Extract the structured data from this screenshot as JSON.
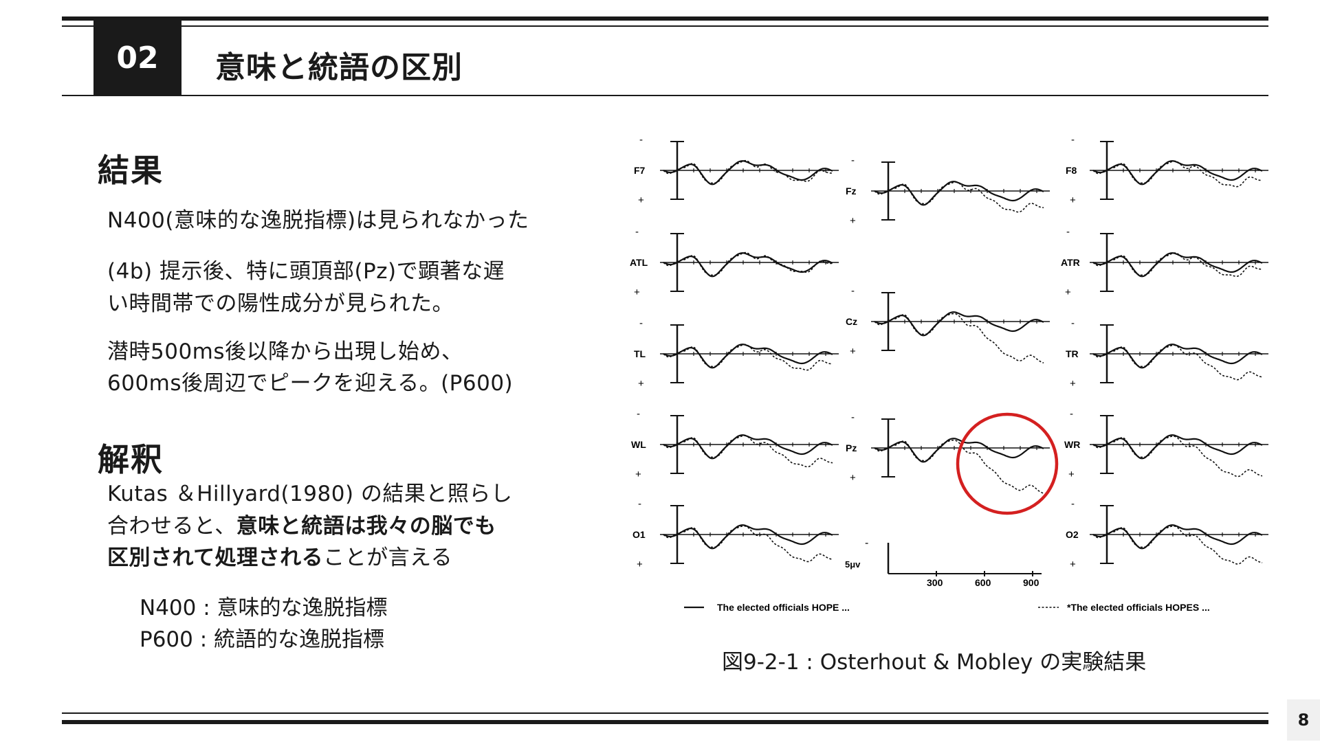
{
  "header": {
    "number": "02",
    "title": "意味と統語の区別"
  },
  "results": {
    "heading": "結果",
    "line1": "N400(意味的な逸脱指標)は見られなかった",
    "line2a": "(4b) 提示後、特に頭頂部(Pz)で顕著な遅",
    "line2b": "い時間帯での陽性成分が見られた。",
    "line3a": "潜時500ms後以降から出現し始め、",
    "line3b": "600ms後周辺でピークを迎える。(P600)"
  },
  "interpretation": {
    "heading": "解釈",
    "line1": "Kutas ＆Hillyard(1980) の結果と照らし",
    "line2_plain": "合わせると、",
    "line2_bold": "意味と統語は我々の脳でも",
    "line3_bold": "区別されて処理される",
    "line3_plain": "ことが言える",
    "def1": "N400 : 意味的な逸脱指標",
    "def2": "P600 : 統語的な逸脱指標"
  },
  "figure": {
    "caption": "図9-2-1 : Osterhout & Mobley の実験結果",
    "minus": "-",
    "plus": "+",
    "channels": {
      "F7": "F7",
      "Fz": "Fz",
      "F8": "F8",
      "ATL": "ATL",
      "ATR": "ATR",
      "Cz": "Cz",
      "TL": "TL",
      "TR": "TR",
      "WL": "WL",
      "Pz": "Pz",
      "WR": "WR",
      "O1": "O1",
      "O2": "O2"
    },
    "scale_label": "5μv",
    "ticks": [
      "300",
      "600",
      "900"
    ],
    "legend_solid": "The elected officials HOPE ...",
    "legend_dashed": "*The elected officials HOPES ...",
    "highlight_color": "#d42020"
  },
  "page_number": "8"
}
